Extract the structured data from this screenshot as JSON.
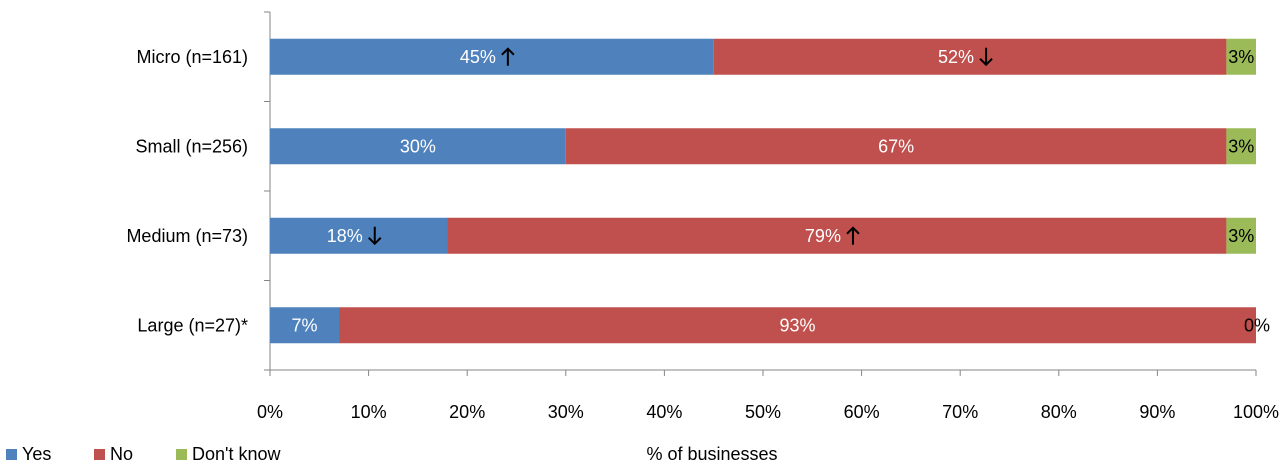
{
  "chart_data": {
    "type": "bar",
    "orientation": "horizontal",
    "stacked": true,
    "categories": [
      "Micro (n=161)",
      "Small (n=256)",
      "Medium (n=73)",
      "Large (n=27)*"
    ],
    "series": [
      {
        "name": "Yes",
        "values": [
          45,
          30,
          18,
          7
        ],
        "labels": [
          "45%",
          "30%",
          "18%",
          "7%"
        ],
        "markers": [
          "up",
          "",
          "down",
          ""
        ],
        "color": "#4F81BD"
      },
      {
        "name": "No",
        "values": [
          52,
          67,
          79,
          93
        ],
        "labels": [
          "52%",
          "67%",
          "79%",
          "93%"
        ],
        "markers": [
          "down",
          "",
          "up",
          ""
        ],
        "color": "#C0504D"
      },
      {
        "name": "Don't know",
        "values": [
          3,
          3,
          3,
          0
        ],
        "labels": [
          "3%",
          "3%",
          "3%",
          "0%"
        ],
        "markers": [
          "",
          "",
          "",
          ""
        ],
        "color": "#9BBB59"
      }
    ],
    "xlabel": "% of businesses",
    "ylabel": "",
    "xlim": [
      0,
      100
    ],
    "xticks": [
      "0%",
      "10%",
      "20%",
      "30%",
      "40%",
      "50%",
      "60%",
      "70%",
      "80%",
      "90%",
      "100%"
    ],
    "legend": {
      "placement": "bottom-left",
      "entries": [
        "Yes",
        "No",
        "Don't know"
      ]
    },
    "grid": false
  }
}
